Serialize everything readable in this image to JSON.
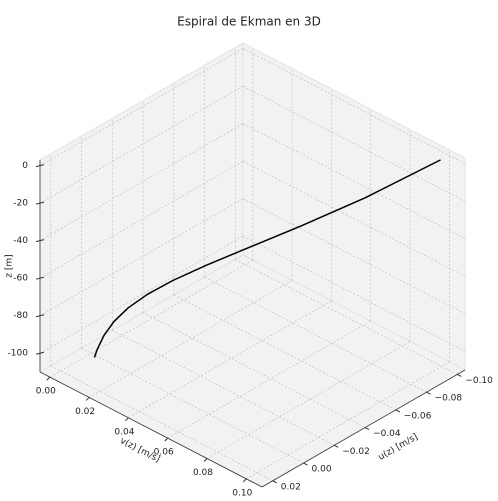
{
  "chart_data": {
    "type": "line3d",
    "title": "Espiral de Ekman en 3D",
    "xlabel": "u(z) [m/s]",
    "ylabel": "v(z) [m/s]",
    "zlabel": "z [m]",
    "series": [
      {
        "color": "#000000",
        "x": [
          -0.0997,
          -0.0651,
          -0.04,
          -0.022,
          -0.0097,
          -0.0015,
          0.0035,
          0.0063,
          0.0076,
          0.0079,
          0.0076,
          0.0072
        ],
        "y": [
          0.0997,
          0.0884,
          0.0756,
          0.0629,
          0.051,
          0.0404,
          0.0313,
          0.0237,
          0.0175,
          0.0126,
          0.0088,
          0.0072
        ],
        "z": [
          0,
          -10,
          -20,
          -30,
          -40,
          -50,
          -60,
          -70,
          -80,
          -90,
          -100,
          -105
        ]
      }
    ],
    "xlim": [
      0.027,
      -0.105
    ],
    "ylim": [
      -0.005,
      0.108
    ],
    "zlim": [
      -110,
      3
    ],
    "xticks": [
      {
        "value": 0.02,
        "label": "0.02"
      },
      {
        "value": 0,
        "label": "0.00"
      },
      {
        "value": -0.02,
        "label": "−0.02"
      },
      {
        "value": -0.04,
        "label": "−0.04"
      },
      {
        "value": -0.06,
        "label": "−0.06"
      },
      {
        "value": -0.08,
        "label": "−0.08"
      },
      {
        "value": -0.1,
        "label": "−0.10"
      }
    ],
    "yticks": [
      {
        "value": 0,
        "label": "0.00"
      },
      {
        "value": 0.02,
        "label": "0.02"
      },
      {
        "value": 0.04,
        "label": "0.04"
      },
      {
        "value": 0.06,
        "label": "0.06"
      },
      {
        "value": 0.08,
        "label": "0.08"
      },
      {
        "value": 0.1,
        "label": "0.10"
      }
    ],
    "zticks": [
      0,
      -20,
      -40,
      -60,
      -80,
      -100
    ],
    "grid": true
  }
}
